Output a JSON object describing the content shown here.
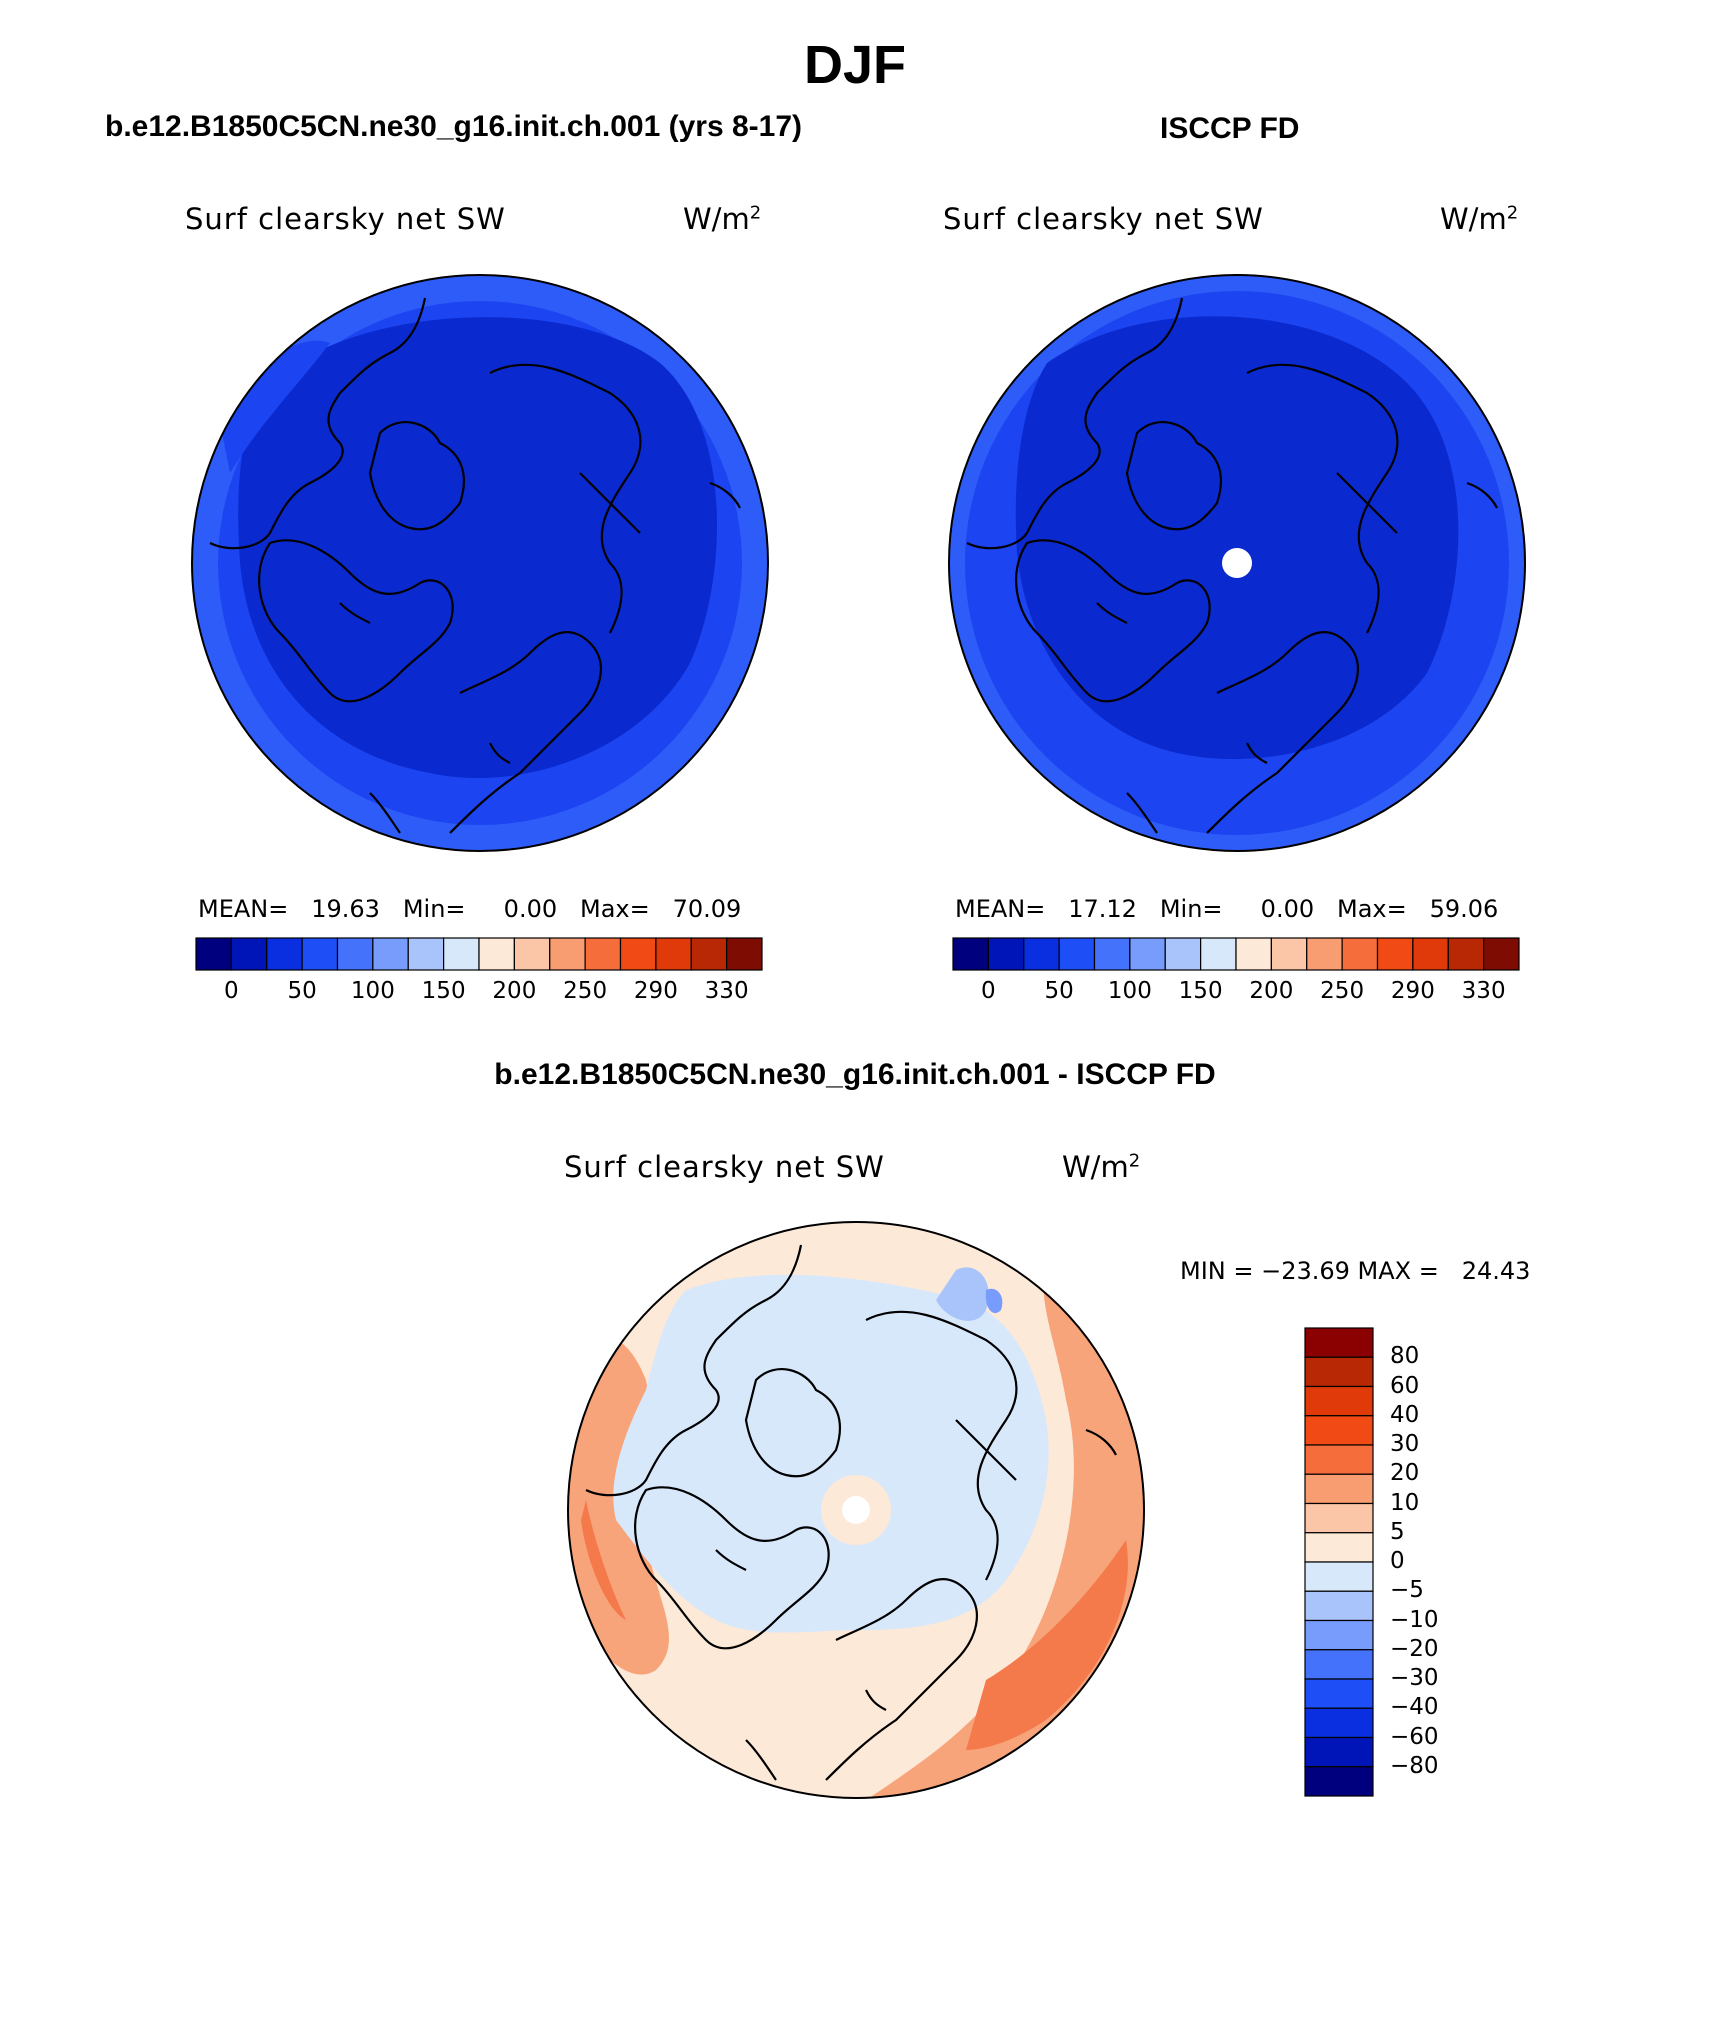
{
  "figure": {
    "title": "DJF"
  },
  "panels": [
    {
      "case_title": "b.e12.B1850C5CN.ne30_g16.init.ch.001 (yrs 8-17)",
      "variable": "Surf clearsky net SW",
      "units": "W/m",
      "units_exp": "2",
      "stats": "MEAN=   19.63   Min=     0.00   Max=   70.09"
    },
    {
      "case_title": "ISCCP FD",
      "variable": "Surf clearsky net SW",
      "units": "W/m",
      "units_exp": "2",
      "stats": "MEAN=   17.12   Min=     0.00   Max=   59.06"
    },
    {
      "case_title": "b.e12.B1850C5CN.ne30_g16.init.ch.001 - ISCCP FD",
      "variable": "Surf clearsky net SW",
      "units": "W/m",
      "units_exp": "2",
      "stats": "MIN = −23.69 MAX =   24.43"
    }
  ],
  "colorbar_main": {
    "colors": [
      "#00007f",
      "#0015b8",
      "#0a2fe0",
      "#1e4ef5",
      "#4472fa",
      "#789cfb",
      "#a9c4fb",
      "#d8e8fb",
      "#fde9d8",
      "#fbc6a8",
      "#f89c72",
      "#f66d3c",
      "#f14a14",
      "#e03a0a",
      "#b82805",
      "#7e0c02"
    ],
    "labels": [
      "0",
      "50",
      "100",
      "150",
      "200",
      "250",
      "290",
      "330"
    ]
  },
  "colorbar_diff": {
    "colors": [
      "#00007f",
      "#0015b8",
      "#0a2fe0",
      "#1e4ef5",
      "#4472fa",
      "#789cfb",
      "#a9c4fb",
      "#d8e8fb",
      "#fde9d8",
      "#fbc6a8",
      "#f89c72",
      "#f66d3c",
      "#f14a14",
      "#e03a0a",
      "#b82805",
      "#8b0000"
    ],
    "labels": [
      "80",
      "60",
      "40",
      "30",
      "20",
      "10",
      "5",
      "0",
      "−5",
      "−10",
      "−20",
      "−30",
      "−40",
      "−60",
      "−80"
    ]
  },
  "colors": {
    "dark_blue": "#0a2ad0",
    "mid_blue": "#1c44f0",
    "light_blue": "#2e5cf8",
    "pale_blue": "#d8e8fb",
    "pale_peach": "#fde9d8",
    "salmon": "#f8a47a",
    "orange": "#f47a4c"
  }
}
